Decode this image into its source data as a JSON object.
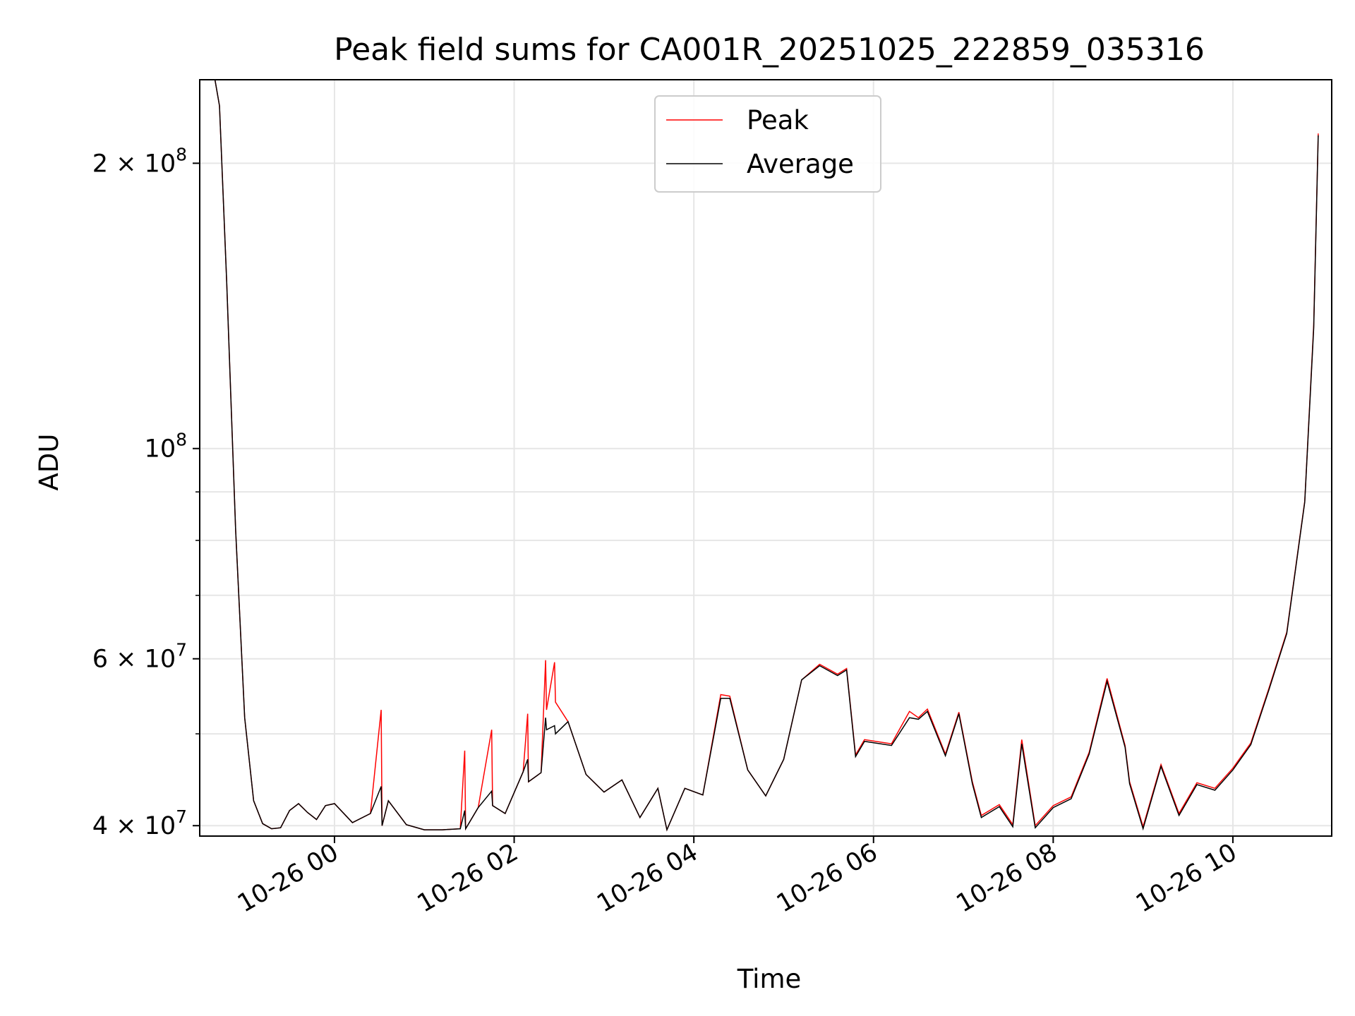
{
  "chart_data": {
    "type": "line",
    "title": "Peak field sums for CA001R_20251025_222859_035316",
    "xlabel": "Time",
    "ylabel": "ADU",
    "yscale": "log",
    "ylim": [
      39000000,
      245000000
    ],
    "xlim_hours_from_midnight": [
      -1.5,
      11.1
    ],
    "grid": true,
    "legend_position": "upper center",
    "x_ticks": [
      {
        "t": 0,
        "label": "10-26 00"
      },
      {
        "t": 2,
        "label": "10-26 02"
      },
      {
        "t": 4,
        "label": "10-26 04"
      },
      {
        "t": 6,
        "label": "10-26 06"
      },
      {
        "t": 8,
        "label": "10-26 08"
      },
      {
        "t": 10,
        "label": "10-26 10"
      }
    ],
    "y_ticks_major": [
      {
        "v": 40000000,
        "base": "4 × 10",
        "exp": "7"
      },
      {
        "v": 60000000,
        "base": "6 × 10",
        "exp": "7"
      },
      {
        "v": 100000000,
        "base": "10",
        "exp": "8"
      },
      {
        "v": 200000000,
        "base": "2 × 10",
        "exp": "8"
      }
    ],
    "y_ticks_minor": [
      50000000,
      70000000,
      80000000,
      90000000
    ],
    "series": [
      {
        "name": "Peak",
        "color": "#ff0000",
        "x": [
          -1.33,
          -1.28,
          -1.2,
          -1.1,
          -1.0,
          -0.9,
          -0.8,
          -0.7,
          -0.6,
          -0.5,
          -0.4,
          -0.3,
          -0.2,
          -0.1,
          0.0,
          0.2,
          0.4,
          0.52,
          0.53,
          0.6,
          0.8,
          1.0,
          1.2,
          1.4,
          1.45,
          1.46,
          1.6,
          1.75,
          1.76,
          1.9,
          2.1,
          2.15,
          2.16,
          2.3,
          2.35,
          2.36,
          2.45,
          2.46,
          2.6,
          2.8,
          3.0,
          3.2,
          3.4,
          3.6,
          3.7,
          3.9,
          4.1,
          4.3,
          4.4,
          4.6,
          4.8,
          5.0,
          5.2,
          5.4,
          5.6,
          5.7,
          5.8,
          5.9,
          6.2,
          6.4,
          6.5,
          6.6,
          6.8,
          6.95,
          7.1,
          7.2,
          7.4,
          7.55,
          7.65,
          7.8,
          8.0,
          8.2,
          8.4,
          8.6,
          8.8,
          8.85,
          9.0,
          9.2,
          9.4,
          9.6,
          9.8,
          10.0,
          10.2,
          10.4,
          10.6,
          10.8,
          10.9,
          10.95
        ],
        "y": [
          245000000,
          230000000,
          150000000,
          82000000,
          52000000,
          42500000,
          40200000,
          39700000,
          39800000,
          41500000,
          42200000,
          41300000,
          40600000,
          42000000,
          42200000,
          40300000,
          41200000,
          53000000,
          40000000,
          42500000,
          40100000,
          39600000,
          39600000,
          39700000,
          48000000,
          39700000,
          41800000,
          50500000,
          42000000,
          41200000,
          45600000,
          52500000,
          44500000,
          45500000,
          59800000,
          53000000,
          59500000,
          54000000,
          51500000,
          45300000,
          43400000,
          44700000,
          40800000,
          43800000,
          39600000,
          43800000,
          43100000,
          55000000,
          54800000,
          45800000,
          43000000,
          47000000,
          57000000,
          59200000,
          57800000,
          58600000,
          47500000,
          49300000,
          48800000,
          52800000,
          52000000,
          53100000,
          47600000,
          52700000,
          44500000,
          41000000,
          42100000,
          40100000,
          49300000,
          40000000,
          42000000,
          42900000,
          47800000,
          57200000,
          48600000,
          44500000,
          39900000,
          46400000,
          41200000,
          44400000,
          43800000,
          46000000,
          48900000,
          55800000,
          64000000,
          88000000,
          135000000,
          215000000
        ]
      },
      {
        "name": "Average",
        "color": "#000000",
        "x": [
          -1.33,
          -1.28,
          -1.2,
          -1.1,
          -1.0,
          -0.9,
          -0.8,
          -0.7,
          -0.6,
          -0.5,
          -0.4,
          -0.3,
          -0.2,
          -0.1,
          0.0,
          0.2,
          0.4,
          0.52,
          0.53,
          0.6,
          0.8,
          1.0,
          1.2,
          1.4,
          1.45,
          1.46,
          1.6,
          1.75,
          1.76,
          1.9,
          2.1,
          2.15,
          2.16,
          2.3,
          2.35,
          2.36,
          2.45,
          2.46,
          2.6,
          2.8,
          3.0,
          3.2,
          3.4,
          3.6,
          3.7,
          3.9,
          4.1,
          4.3,
          4.4,
          4.6,
          4.8,
          5.0,
          5.2,
          5.4,
          5.6,
          5.7,
          5.8,
          5.9,
          6.2,
          6.4,
          6.5,
          6.6,
          6.8,
          6.95,
          7.1,
          7.2,
          7.4,
          7.55,
          7.65,
          7.8,
          8.0,
          8.2,
          8.4,
          8.6,
          8.8,
          8.85,
          9.0,
          9.2,
          9.4,
          9.6,
          9.8,
          10.0,
          10.2,
          10.4,
          10.6,
          10.8,
          10.9,
          10.95
        ],
        "y": [
          245000000,
          230000000,
          150000000,
          82000000,
          52000000,
          42500000,
          40200000,
          39700000,
          39800000,
          41500000,
          42200000,
          41300000,
          40600000,
          42000000,
          42200000,
          40300000,
          41200000,
          44000000,
          40000000,
          42500000,
          40100000,
          39600000,
          39600000,
          39700000,
          41500000,
          39700000,
          41800000,
          43500000,
          42000000,
          41200000,
          45600000,
          47000000,
          44500000,
          45500000,
          52000000,
          50500000,
          51000000,
          50000000,
          51500000,
          45300000,
          43400000,
          44700000,
          40800000,
          43800000,
          39600000,
          43800000,
          43100000,
          54500000,
          54500000,
          45800000,
          43000000,
          47000000,
          57000000,
          59000000,
          57600000,
          58400000,
          47300000,
          49100000,
          48600000,
          52000000,
          51800000,
          52800000,
          47400000,
          52500000,
          44300000,
          40800000,
          41900000,
          39900000,
          48800000,
          39800000,
          41800000,
          42700000,
          47600000,
          56800000,
          48400000,
          44300000,
          39700000,
          46200000,
          41000000,
          44200000,
          43600000,
          45800000,
          48700000,
          55600000,
          63800000,
          87800000,
          134000000,
          214000000
        ]
      }
    ]
  },
  "legend": {
    "items": [
      {
        "label": "Peak",
        "color": "#ff0000"
      },
      {
        "label": "Average",
        "color": "#000000"
      }
    ]
  }
}
